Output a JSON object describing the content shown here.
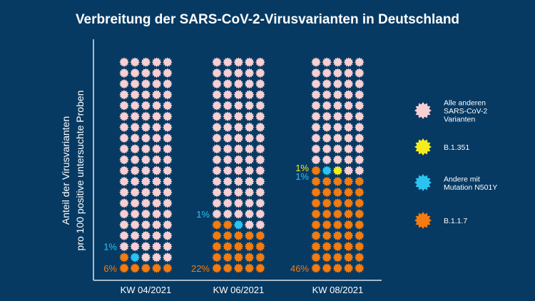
{
  "chart_data": {
    "type": "waffle",
    "title": "Verbreitung der SARS-CoV-2-Virusvarianten in Deutschland",
    "ylabel": [
      "Anteil der Virusvarianten",
      "pro 100 positive untersuchte Proben"
    ],
    "units_per_chart": 100,
    "categories": [
      "KW 04/2021",
      "KW 06/2021",
      "KW 08/2021"
    ],
    "series": [
      {
        "name": "B.1.1.7",
        "color": "#f47b0f",
        "values": [
          6,
          22,
          46
        ]
      },
      {
        "name": "Andere mit Mutation N501Y",
        "color": "#2bc4f2",
        "values": [
          1,
          1,
          1
        ]
      },
      {
        "name": "B.1.351",
        "color": "#f4ec1e",
        "values": [
          0,
          0,
          1
        ]
      },
      {
        "name": "Alle anderen SARS-CoV-2 Varianten",
        "color": "#f8d0d3",
        "values": [
          93,
          77,
          52
        ]
      }
    ],
    "labels": [
      [
        {
          "text": "6%",
          "color": "#f47b0f"
        },
        {
          "text": "1%",
          "color": "#2bc4f2"
        }
      ],
      [
        {
          "text": "22%",
          "color": "#f47b0f"
        },
        {
          "text": "1%",
          "color": "#2bc4f2"
        }
      ],
      [
        {
          "text": "46%",
          "color": "#f47b0f"
        },
        {
          "text": "1%",
          "color": "#2bc4f2"
        },
        {
          "text": "1%",
          "color": "#f4ec1e"
        }
      ]
    ],
    "legend": [
      {
        "series": "Alle anderen SARS-CoV-2 Varianten",
        "lines": [
          "Alle anderen",
          "SARS-CoV-2",
          "Varianten"
        ]
      },
      {
        "series": "B.1.351",
        "lines": [
          "B.1.351"
        ]
      },
      {
        "series": "Andere mit Mutation N501Y",
        "lines": [
          "Andere mit",
          "Mutation N501Y"
        ]
      },
      {
        "series": "B.1.1.7",
        "lines": [
          "B.1.1.7"
        ]
      }
    ],
    "legend_position": "right",
    "background": "#073a63"
  }
}
